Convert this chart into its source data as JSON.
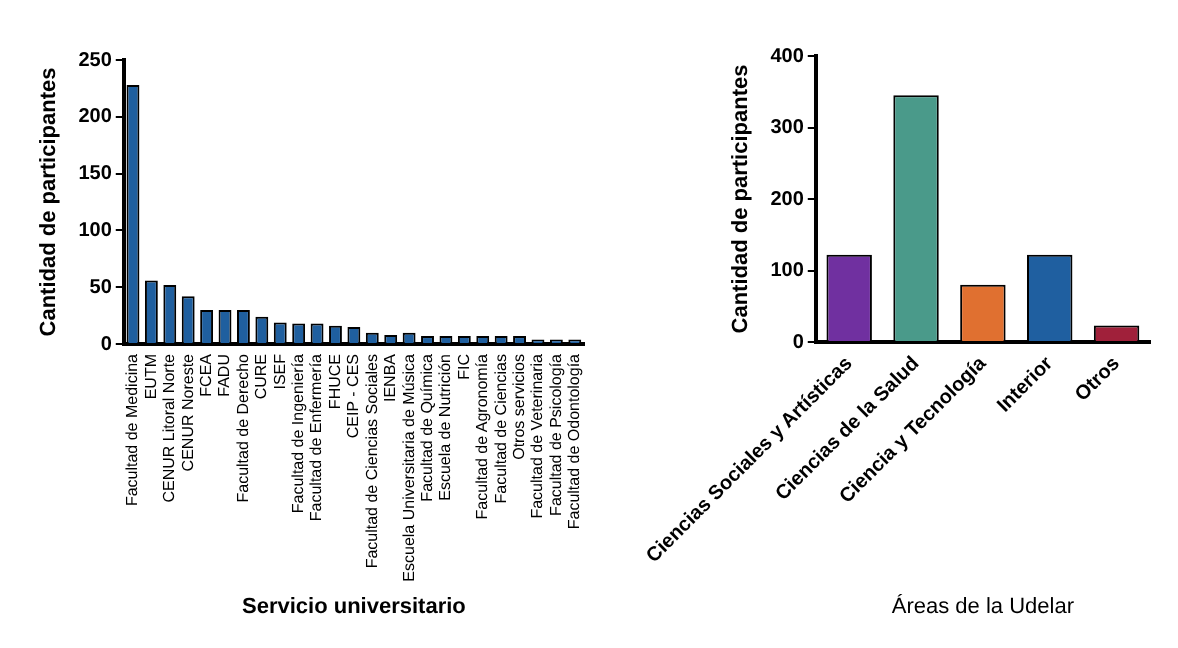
{
  "chart_data": [
    {
      "type": "bar",
      "xlabel": "Servicio universitario",
      "ylabel": "Cantidad de participantes",
      "categories": [
        "Facultad de Medicina",
        "EUTM",
        "CENUR Litoral Norte",
        "CENUR Noreste",
        "FCEA",
        "FADU",
        "Facultad de Derecho",
        "CURE",
        "ISEF",
        "Facultad de Ingeniería",
        "Facultad de Enfermería",
        "FHUCE",
        "CEIP - CES",
        "Facultad de Ciencias Sociales",
        "IENBA",
        "Escuela Universitaria de Música",
        "Facultad de Química",
        "Escuela de Nutrición",
        "FIC",
        "Facultad de Agronomía",
        "Facultad de Ciencias",
        "Otros servicios",
        "Facultad de Veterinaria",
        "Facultad de Psicología",
        "Facultad de Odontología"
      ],
      "values": [
        228,
        56,
        52,
        42,
        30,
        30,
        30,
        24,
        19,
        18,
        18,
        16,
        15,
        10,
        8,
        10,
        7,
        7,
        7,
        7,
        7,
        7,
        4,
        4,
        4
      ],
      "color": "#1f5f9f",
      "ylim": [
        0,
        250
      ],
      "yticks": [
        0,
        50,
        100,
        150,
        200,
        250
      ],
      "grid": false,
      "legend": false
    },
    {
      "type": "bar",
      "xlabel": "Áreas de la Udelar",
      "ylabel": "Cantidad de participantes",
      "categories": [
        "Ciencias Sociales y Artísticas",
        "Ciencias de la Salud",
        "Ciencia y Tecnología",
        "Interior",
        "Otros"
      ],
      "values": [
        122,
        345,
        80,
        122,
        23
      ],
      "colors": [
        "#7030a0",
        "#4a9a8a",
        "#e07030",
        "#1f5fa0",
        "#a0203a"
      ],
      "ylim": [
        0,
        400
      ],
      "yticks": [
        0,
        100,
        200,
        300,
        400
      ],
      "grid": false,
      "legend": false
    }
  ]
}
